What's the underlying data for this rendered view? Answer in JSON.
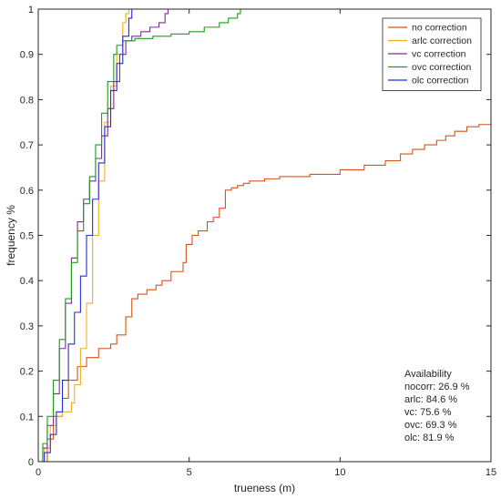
{
  "chart_data": {
    "type": "line",
    "title": "",
    "xlabel": "trueness (m)",
    "ylabel": "frequency %",
    "xlim": [
      0,
      15
    ],
    "ylim": [
      0,
      1
    ],
    "xticks": [
      0,
      5,
      10,
      15
    ],
    "yticks": [
      0,
      0.1,
      0.2,
      0.3,
      0.4,
      0.5,
      0.6,
      0.7,
      0.8,
      0.9,
      1
    ],
    "grid": false,
    "legend_position": "top-right",
    "series": [
      {
        "name": "no correction",
        "color": "#D95319",
        "x": [
          0,
          0.3,
          0.5,
          0.8,
          1.0,
          1.3,
          1.6,
          2.0,
          2.4,
          2.6,
          2.9,
          3.1,
          3.3,
          3.6,
          3.9,
          4.1,
          4.4,
          4.8,
          4.9,
          5.1,
          5.3,
          5.6,
          5.8,
          6.0,
          6.2,
          6.4,
          6.6,
          6.8,
          7.0,
          7.5,
          8.0,
          9.0,
          10.0,
          10.8,
          11.5,
          12.0,
          12.4,
          12.8,
          13.2,
          13.5,
          13.8,
          14.2,
          14.6,
          15.0
        ],
        "y": [
          0,
          0.05,
          0.1,
          0.14,
          0.18,
          0.21,
          0.23,
          0.25,
          0.26,
          0.28,
          0.32,
          0.36,
          0.37,
          0.38,
          0.39,
          0.4,
          0.42,
          0.44,
          0.48,
          0.5,
          0.51,
          0.53,
          0.54,
          0.56,
          0.6,
          0.605,
          0.61,
          0.615,
          0.62,
          0.625,
          0.63,
          0.635,
          0.645,
          0.655,
          0.665,
          0.68,
          0.69,
          0.7,
          0.71,
          0.72,
          0.73,
          0.74,
          0.745,
          0.755
        ]
      },
      {
        "name": "arlc correction",
        "color": "#EDB120",
        "x": [
          0,
          0.2,
          0.4,
          0.6,
          0.8,
          1.0,
          1.1,
          1.2,
          1.4,
          1.6,
          1.8,
          2.0,
          2.2,
          2.4,
          2.6,
          2.8,
          2.9,
          3.0
        ],
        "y": [
          0,
          0.03,
          0.08,
          0.1,
          0.11,
          0.11,
          0.13,
          0.17,
          0.25,
          0.35,
          0.5,
          0.62,
          0.75,
          0.83,
          0.9,
          0.97,
          0.99,
          1.0
        ]
      },
      {
        "name": "vc correction",
        "color": "#7E2F8E",
        "x": [
          0,
          0.15,
          0.3,
          0.5,
          0.7,
          0.9,
          1.1,
          1.3,
          1.5,
          1.7,
          1.9,
          2.1,
          2.3,
          2.5,
          2.7,
          2.9,
          3.1,
          3.4,
          3.7,
          4.0,
          4.2,
          4.3
        ],
        "y": [
          0,
          0.03,
          0.08,
          0.15,
          0.25,
          0.35,
          0.45,
          0.53,
          0.58,
          0.62,
          0.67,
          0.72,
          0.78,
          0.84,
          0.9,
          0.93,
          0.94,
          0.95,
          0.96,
          0.97,
          0.99,
          1.0
        ]
      },
      {
        "name": "ovc correction",
        "color": "#1F9A1F",
        "x": [
          0,
          0.15,
          0.3,
          0.5,
          0.7,
          0.9,
          1.1,
          1.3,
          1.5,
          1.7,
          1.9,
          2.1,
          2.3,
          2.5,
          2.6,
          2.8,
          3.2,
          3.8,
          4.4,
          5.0,
          5.5,
          6.0,
          6.3,
          6.6,
          6.7
        ],
        "y": [
          0,
          0.04,
          0.1,
          0.18,
          0.27,
          0.36,
          0.44,
          0.51,
          0.57,
          0.63,
          0.7,
          0.77,
          0.84,
          0.9,
          0.92,
          0.93,
          0.935,
          0.94,
          0.945,
          0.95,
          0.96,
          0.97,
          0.98,
          0.99,
          1.0
        ]
      },
      {
        "name": "olc correction",
        "color": "#2A2AE0",
        "x": [
          0,
          0.2,
          0.4,
          0.6,
          0.8,
          1.0,
          1.2,
          1.4,
          1.6,
          1.8,
          2.0,
          2.2,
          2.4,
          2.6,
          2.8,
          3.0,
          3.1
        ],
        "y": [
          0,
          0.02,
          0.06,
          0.11,
          0.18,
          0.26,
          0.33,
          0.41,
          0.5,
          0.58,
          0.66,
          0.74,
          0.82,
          0.88,
          0.94,
          0.98,
          1.0
        ]
      }
    ],
    "annotation": {
      "title": "Availability",
      "lines": [
        "nocorr: 26.9 %",
        "arlc: 84.6 %",
        "vc: 75.6 %",
        "ovc: 69.3 %",
        "olc: 81.9 %"
      ]
    }
  }
}
